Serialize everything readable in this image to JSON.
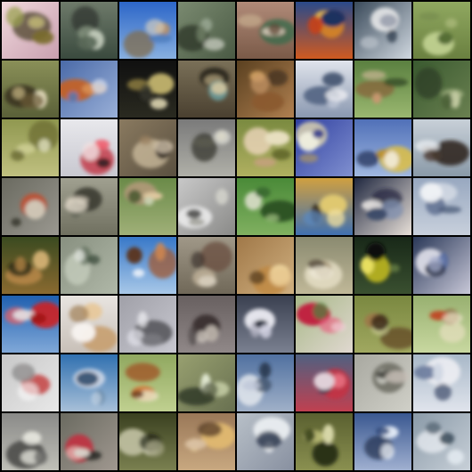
{
  "grid": {
    "rows": 8,
    "cols": 8,
    "border_color": "#000000",
    "tiles": [
      {
        "bg": [
          "#f0d8dc",
          "#c9a0b0"
        ],
        "blobs": [
          [
            "#3e3a1a",
            "#7a6b2e"
          ],
          [
            "#c8c07a",
            "#9aa050"
          ]
        ]
      },
      {
        "bg": [
          "#6e7a6a",
          "#3a4a3e"
        ],
        "blobs": [
          [
            "#2e342c",
            "#8a9a84"
          ],
          [
            "#c8d0c0",
            "#5a6a58"
          ]
        ]
      },
      {
        "bg": [
          "#2c66c8",
          "#88b0e0"
        ],
        "blobs": [
          [
            "#806a4a",
            "#b09070"
          ],
          [
            "#d8d0c0",
            "#4a7ab8"
          ]
        ]
      },
      {
        "bg": [
          "#7a8a70",
          "#4a5a44"
        ],
        "blobs": [
          [
            "#2e3628",
            "#9aa894"
          ],
          [
            "#c8ccc0",
            "#6a7a60"
          ]
        ]
      },
      {
        "bg": [
          "#b08a78",
          "#7a5a48"
        ],
        "blobs": [
          [
            "#3a6a4a",
            "#c8b090"
          ],
          [
            "#e0d0c0",
            "#5a4030"
          ]
        ]
      },
      {
        "bg": [
          "#2a4a8a",
          "#d05a20"
        ],
        "blobs": [
          [
            "#e08a20",
            "#f0c050"
          ],
          [
            "#1a3060",
            "#c84018"
          ]
        ]
      },
      {
        "bg": [
          "#3a4a5a",
          "#d0d8e0"
        ],
        "blobs": [
          [
            "#f0f0f0",
            "#b8c0c8"
          ],
          [
            "#283848",
            "#8890a0"
          ]
        ]
      },
      {
        "bg": [
          "#90a860",
          "#6a8040"
        ],
        "blobs": [
          [
            "#c8d898",
            "#506830"
          ],
          [
            "#a8b878",
            "#7a9050"
          ]
        ]
      },
      {
        "bg": [
          "#8a9058",
          "#5a6038"
        ],
        "blobs": [
          [
            "#3a3020",
            "#b8a878"
          ],
          [
            "#e0d8b8",
            "#6a5a38"
          ]
        ]
      },
      {
        "bg": [
          "#4a6aa8",
          "#9ab0d8"
        ],
        "blobs": [
          [
            "#c86020",
            "#e0a060"
          ],
          [
            "#d8e0f0",
            "#5a78b0"
          ]
        ]
      },
      {
        "bg": [
          "#101010",
          "#2a2a20"
        ],
        "blobs": [
          [
            "#c8b870",
            "#8a7a40"
          ],
          [
            "#f0e8c0",
            "#3a3a30"
          ]
        ]
      },
      {
        "bg": [
          "#7a7058",
          "#4a4030"
        ],
        "blobs": [
          [
            "#2a2820",
            "#b8a880"
          ],
          [
            "#6a9a98",
            "#d8c8a0"
          ]
        ]
      },
      {
        "bg": [
          "#5a4020",
          "#b08050"
        ],
        "blobs": [
          [
            "#8a5a30",
            "#d0a060"
          ],
          [
            "#3a2818",
            "#c89868"
          ]
        ]
      },
      {
        "bg": [
          "#e0e4ec",
          "#8a98b0"
        ],
        "blobs": [
          [
            "#5a6a88",
            "#c0c8d8"
          ],
          [
            "#f0f0f4",
            "#3a4a68"
          ]
        ]
      },
      {
        "bg": [
          "#5a8040",
          "#9ab870"
        ],
        "blobs": [
          [
            "#8a5a38",
            "#c89870"
          ],
          [
            "#3a5028",
            "#d0b898"
          ]
        ]
      },
      {
        "bg": [
          "#3a5a30",
          "#6a8050"
        ],
        "blobs": [
          [
            "#2a3a20",
            "#a0b080"
          ],
          [
            "#c0c8a0",
            "#4a6038"
          ]
        ]
      },
      {
        "bg": [
          "#909850",
          "#c0c080"
        ],
        "blobs": [
          [
            "#6a6a30",
            "#d8d8a0"
          ],
          [
            "#e8e8c8",
            "#5a5a28"
          ]
        ]
      },
      {
        "bg": [
          "#e8e8ec",
          "#c8c8d0"
        ],
        "blobs": [
          [
            "#c02030",
            "#f06070"
          ],
          [
            "#2a2020",
            "#f0e0e0"
          ]
        ]
      },
      {
        "bg": [
          "#8a7a60",
          "#5a5040"
        ],
        "blobs": [
          [
            "#d0c0a0",
            "#9a8060"
          ],
          [
            "#3a3028",
            "#e8d8c0"
          ]
        ]
      },
      {
        "bg": [
          "#7a7a7a",
          "#b0b0a8"
        ],
        "blobs": [
          [
            "#3a3a30",
            "#c8c0a0"
          ],
          [
            "#e0e0d8",
            "#5a5a50"
          ]
        ]
      },
      {
        "bg": [
          "#7a8a40",
          "#b0b060"
        ],
        "blobs": [
          [
            "#f0d8c0",
            "#c8a080"
          ],
          [
            "#5a6028",
            "#e8e0c0"
          ]
        ]
      },
      {
        "bg": [
          "#3040a0",
          "#8090d0"
        ],
        "blobs": [
          [
            "#e0d8b0",
            "#b09860"
          ],
          [
            "#f0f0e0",
            "#2a3088"
          ]
        ]
      },
      {
        "bg": [
          "#5070b8",
          "#a0b8e0"
        ],
        "blobs": [
          [
            "#e0c040",
            "#c09020"
          ],
          [
            "#1a2a50",
            "#f0e8d0"
          ]
        ]
      },
      {
        "bg": [
          "#c8d0d8",
          "#8a9aa8"
        ],
        "blobs": [
          [
            "#2a2018",
            "#6a5040"
          ],
          [
            "#e8ecf0",
            "#4a3a30"
          ]
        ]
      },
      {
        "bg": [
          "#6a6a60",
          "#9a9890"
        ],
        "blobs": [
          [
            "#c05030",
            "#e09060"
          ],
          [
            "#3a3a30",
            "#d0c8b8"
          ]
        ]
      },
      {
        "bg": [
          "#a0a090",
          "#707060"
        ],
        "blobs": [
          [
            "#3a3a30",
            "#c8c0b0"
          ],
          [
            "#5a6050",
            "#e0d8c8"
          ]
        ]
      },
      {
        "bg": [
          "#6a8a48",
          "#a0b078"
        ],
        "blobs": [
          [
            "#b09878",
            "#e0c8a0"
          ],
          [
            "#3a5028",
            "#c8d0b0"
          ]
        ]
      },
      {
        "bg": [
          "#c8c8c8",
          "#8a8a88"
        ],
        "blobs": [
          [
            "#e8e8e8",
            "#a0a098"
          ],
          [
            "#4a4a48",
            "#d8d8d0"
          ]
        ]
      },
      {
        "bg": [
          "#4a8a38",
          "#80b060"
        ],
        "blobs": [
          [
            "#2a5020",
            "#a8c888"
          ],
          [
            "#d0d8c0",
            "#3a6a30"
          ]
        ]
      },
      {
        "bg": [
          "#d0a040",
          "#4070b0"
        ],
        "blobs": [
          [
            "#e0c870",
            "#3a3020"
          ],
          [
            "#5a88c0",
            "#f0e0a0"
          ]
        ]
      },
      {
        "bg": [
          "#202840",
          "#e8e0d8"
        ],
        "blobs": [
          [
            "#1a2038",
            "#8090b0"
          ],
          [
            "#f0ece8",
            "#3a4868"
          ]
        ]
      },
      {
        "bg": [
          "#98a8c0",
          "#c8d0dc"
        ],
        "blobs": [
          [
            "#e0e4ec",
            "#6a7a98"
          ],
          [
            "#f0f2f6",
            "#4a5a78"
          ]
        ]
      },
      {
        "bg": [
          "#3a4a20",
          "#8a6a30"
        ],
        "blobs": [
          [
            "#c89050",
            "#e8c080"
          ],
          [
            "#1a2010",
            "#a07840"
          ]
        ]
      },
      {
        "bg": [
          "#889080",
          "#b0b8a8"
        ],
        "blobs": [
          [
            "#c8d0c0",
            "#5a6858"
          ],
          [
            "#e0e4dc",
            "#3a4a38"
          ]
        ]
      },
      {
        "bg": [
          "#3878c8",
          "#a8c8e8"
        ],
        "blobs": [
          [
            "#a05a30",
            "#d08850"
          ],
          [
            "#e8f0f8",
            "#5a3018"
          ]
        ]
      },
      {
        "bg": [
          "#a09888",
          "#706858"
        ],
        "blobs": [
          [
            "#6a5040",
            "#c8b8a0"
          ],
          [
            "#3a3028",
            "#e0d8c8"
          ]
        ]
      },
      {
        "bg": [
          "#a07848",
          "#d0b080"
        ],
        "blobs": [
          [
            "#c08840",
            "#f0d8a0"
          ],
          [
            "#5a4020",
            "#e8c890"
          ]
        ]
      },
      {
        "bg": [
          "#8a8a70",
          "#c0b898"
        ],
        "blobs": [
          [
            "#e8e0c8",
            "#a09070"
          ],
          [
            "#5a5040",
            "#f0ead8"
          ]
        ]
      },
      {
        "bg": [
          "#182818",
          "#3a5030"
        ],
        "blobs": [
          [
            "#c8c020",
            "#e8e060"
          ],
          [
            "#0a100a",
            "#607840"
          ]
        ]
      },
      {
        "bg": [
          "#2a3858",
          "#c8c8d8"
        ],
        "blobs": [
          [
            "#e8e8f0",
            "#5068a0"
          ],
          [
            "#182038",
            "#a0a8c8"
          ]
        ]
      },
      {
        "bg": [
          "#2060b0",
          "#80a8d8"
        ],
        "blobs": [
          [
            "#d02020",
            "#f06060"
          ],
          [
            "#e8e8e8",
            "#a01818"
          ]
        ]
      },
      {
        "bg": [
          "#e8e4e0",
          "#c8c0b8"
        ],
        "blobs": [
          [
            "#c8a070",
            "#e8c898"
          ],
          [
            "#f8f4f0",
            "#a08058"
          ]
        ]
      },
      {
        "bg": [
          "#a0a0a8",
          "#c8c8d0"
        ],
        "blobs": [
          [
            "#5a5a60",
            "#e0e0e8"
          ],
          [
            "#f0f0f4",
            "#7a7a80"
          ]
        ]
      },
      {
        "bg": [
          "#686060",
          "#908888"
        ],
        "blobs": [
          [
            "#3a3030",
            "#b8b0a8"
          ],
          [
            "#c8c0b8",
            "#504848"
          ]
        ]
      },
      {
        "bg": [
          "#3a4050",
          "#7a8090"
        ],
        "blobs": [
          [
            "#e8e8f0",
            "#b0b0c0"
          ],
          [
            "#1a2030",
            "#d0d0e0"
          ]
        ]
      },
      {
        "bg": [
          "#a8b888",
          "#e0d8d0"
        ],
        "blobs": [
          [
            "#c02040",
            "#e86080"
          ],
          [
            "#4a8840",
            "#f0d0d8"
          ]
        ]
      },
      {
        "bg": [
          "#7a8840",
          "#a0a860"
        ],
        "blobs": [
          [
            "#5a3a20",
            "#a07848"
          ],
          [
            "#c8c890",
            "#3a2818"
          ]
        ]
      },
      {
        "bg": [
          "#98b070",
          "#c8d8a0"
        ],
        "blobs": [
          [
            "#e8e0c0",
            "#8a5a30"
          ],
          [
            "#c04020",
            "#f0e8d0"
          ]
        ]
      },
      {
        "bg": [
          "#c8c8c8",
          "#e8e8e8"
        ],
        "blobs": [
          [
            "#c02020",
            "#f0e0e0"
          ],
          [
            "#f8f8f8",
            "#909090"
          ]
        ]
      },
      {
        "bg": [
          "#3070b0",
          "#a8c0d8"
        ],
        "blobs": [
          [
            "#e8e8f0",
            "#6a8aa8"
          ],
          [
            "#1a3858",
            "#c8d8e8"
          ]
        ]
      },
      {
        "bg": [
          "#90a860",
          "#c0d090"
        ],
        "blobs": [
          [
            "#a05020",
            "#d08040"
          ],
          [
            "#e8e0c0",
            "#6a3818"
          ]
        ]
      },
      {
        "bg": [
          "#98a070",
          "#687050"
        ],
        "blobs": [
          [
            "#2a3020",
            "#c8d0a8"
          ],
          [
            "#e0e8d0",
            "#4a5038"
          ]
        ]
      },
      {
        "bg": [
          "#5070a0",
          "#a0b0c8"
        ],
        "blobs": [
          [
            "#e8ecf0",
            "#384860"
          ],
          [
            "#1a2838",
            "#c0c8d8"
          ]
        ]
      },
      {
        "bg": [
          "#506080",
          "#c04050"
        ],
        "blobs": [
          [
            "#c83040",
            "#e87080"
          ],
          [
            "#2a3850",
            "#e0d0d8"
          ]
        ]
      },
      {
        "bg": [
          "#a8a8a0",
          "#d0d0c8"
        ],
        "blobs": [
          [
            "#6a6a60",
            "#e0e0d8"
          ],
          [
            "#484840",
            "#c8c0b8"
          ]
        ]
      },
      {
        "bg": [
          "#a8b8c8",
          "#e0e4ec"
        ],
        "blobs": [
          [
            "#f0f0f4",
            "#7080a0"
          ],
          [
            "#3a4a68",
            "#d0d8e4"
          ]
        ]
      },
      {
        "bg": [
          "#8a8a88",
          "#c0c0b8"
        ],
        "blobs": [
          [
            "#4a4a48",
            "#e0e0d8"
          ],
          [
            "#f0f0e8",
            "#6a6a68"
          ]
        ]
      },
      {
        "bg": [
          "#6a6a60",
          "#a09890"
        ],
        "blobs": [
          [
            "#c03040",
            "#e8c8c0"
          ],
          [
            "#2a2a28",
            "#d8d0c8"
          ]
        ]
      },
      {
        "bg": [
          "#3a4020",
          "#7a8050"
        ],
        "blobs": [
          [
            "#c0c0a0",
            "#e8e8d0"
          ],
          [
            "#1a2010",
            "#a0a080"
          ]
        ]
      },
      {
        "bg": [
          "#9a7858",
          "#c8a880"
        ],
        "blobs": [
          [
            "#e0b870",
            "#f0d8a0"
          ],
          [
            "#5a4028",
            "#d8c0a0"
          ]
        ]
      },
      {
        "bg": [
          "#b8c0c8",
          "#8890a0"
        ],
        "blobs": [
          [
            "#e8ecf0",
            "#5a6478"
          ],
          [
            "#f4f6f8",
            "#3a4458"
          ]
        ]
      },
      {
        "bg": [
          "#5a6030",
          "#8a9050"
        ],
        "blobs": [
          [
            "#2a3018",
            "#c8c880"
          ],
          [
            "#d8d8a8",
            "#404820"
          ]
        ]
      },
      {
        "bg": [
          "#3a5890",
          "#a0b0d0"
        ],
        "blobs": [
          [
            "#1a2848",
            "#e0e8f4"
          ],
          [
            "#f0f4f8",
            "#2a4070"
          ]
        ]
      },
      {
        "bg": [
          "#8a9aa8",
          "#c8d0d8"
        ],
        "blobs": [
          [
            "#f0f4f8",
            "#5a6a78"
          ],
          [
            "#3a4a58",
            "#e0e8ee"
          ]
        ]
      }
    ]
  }
}
